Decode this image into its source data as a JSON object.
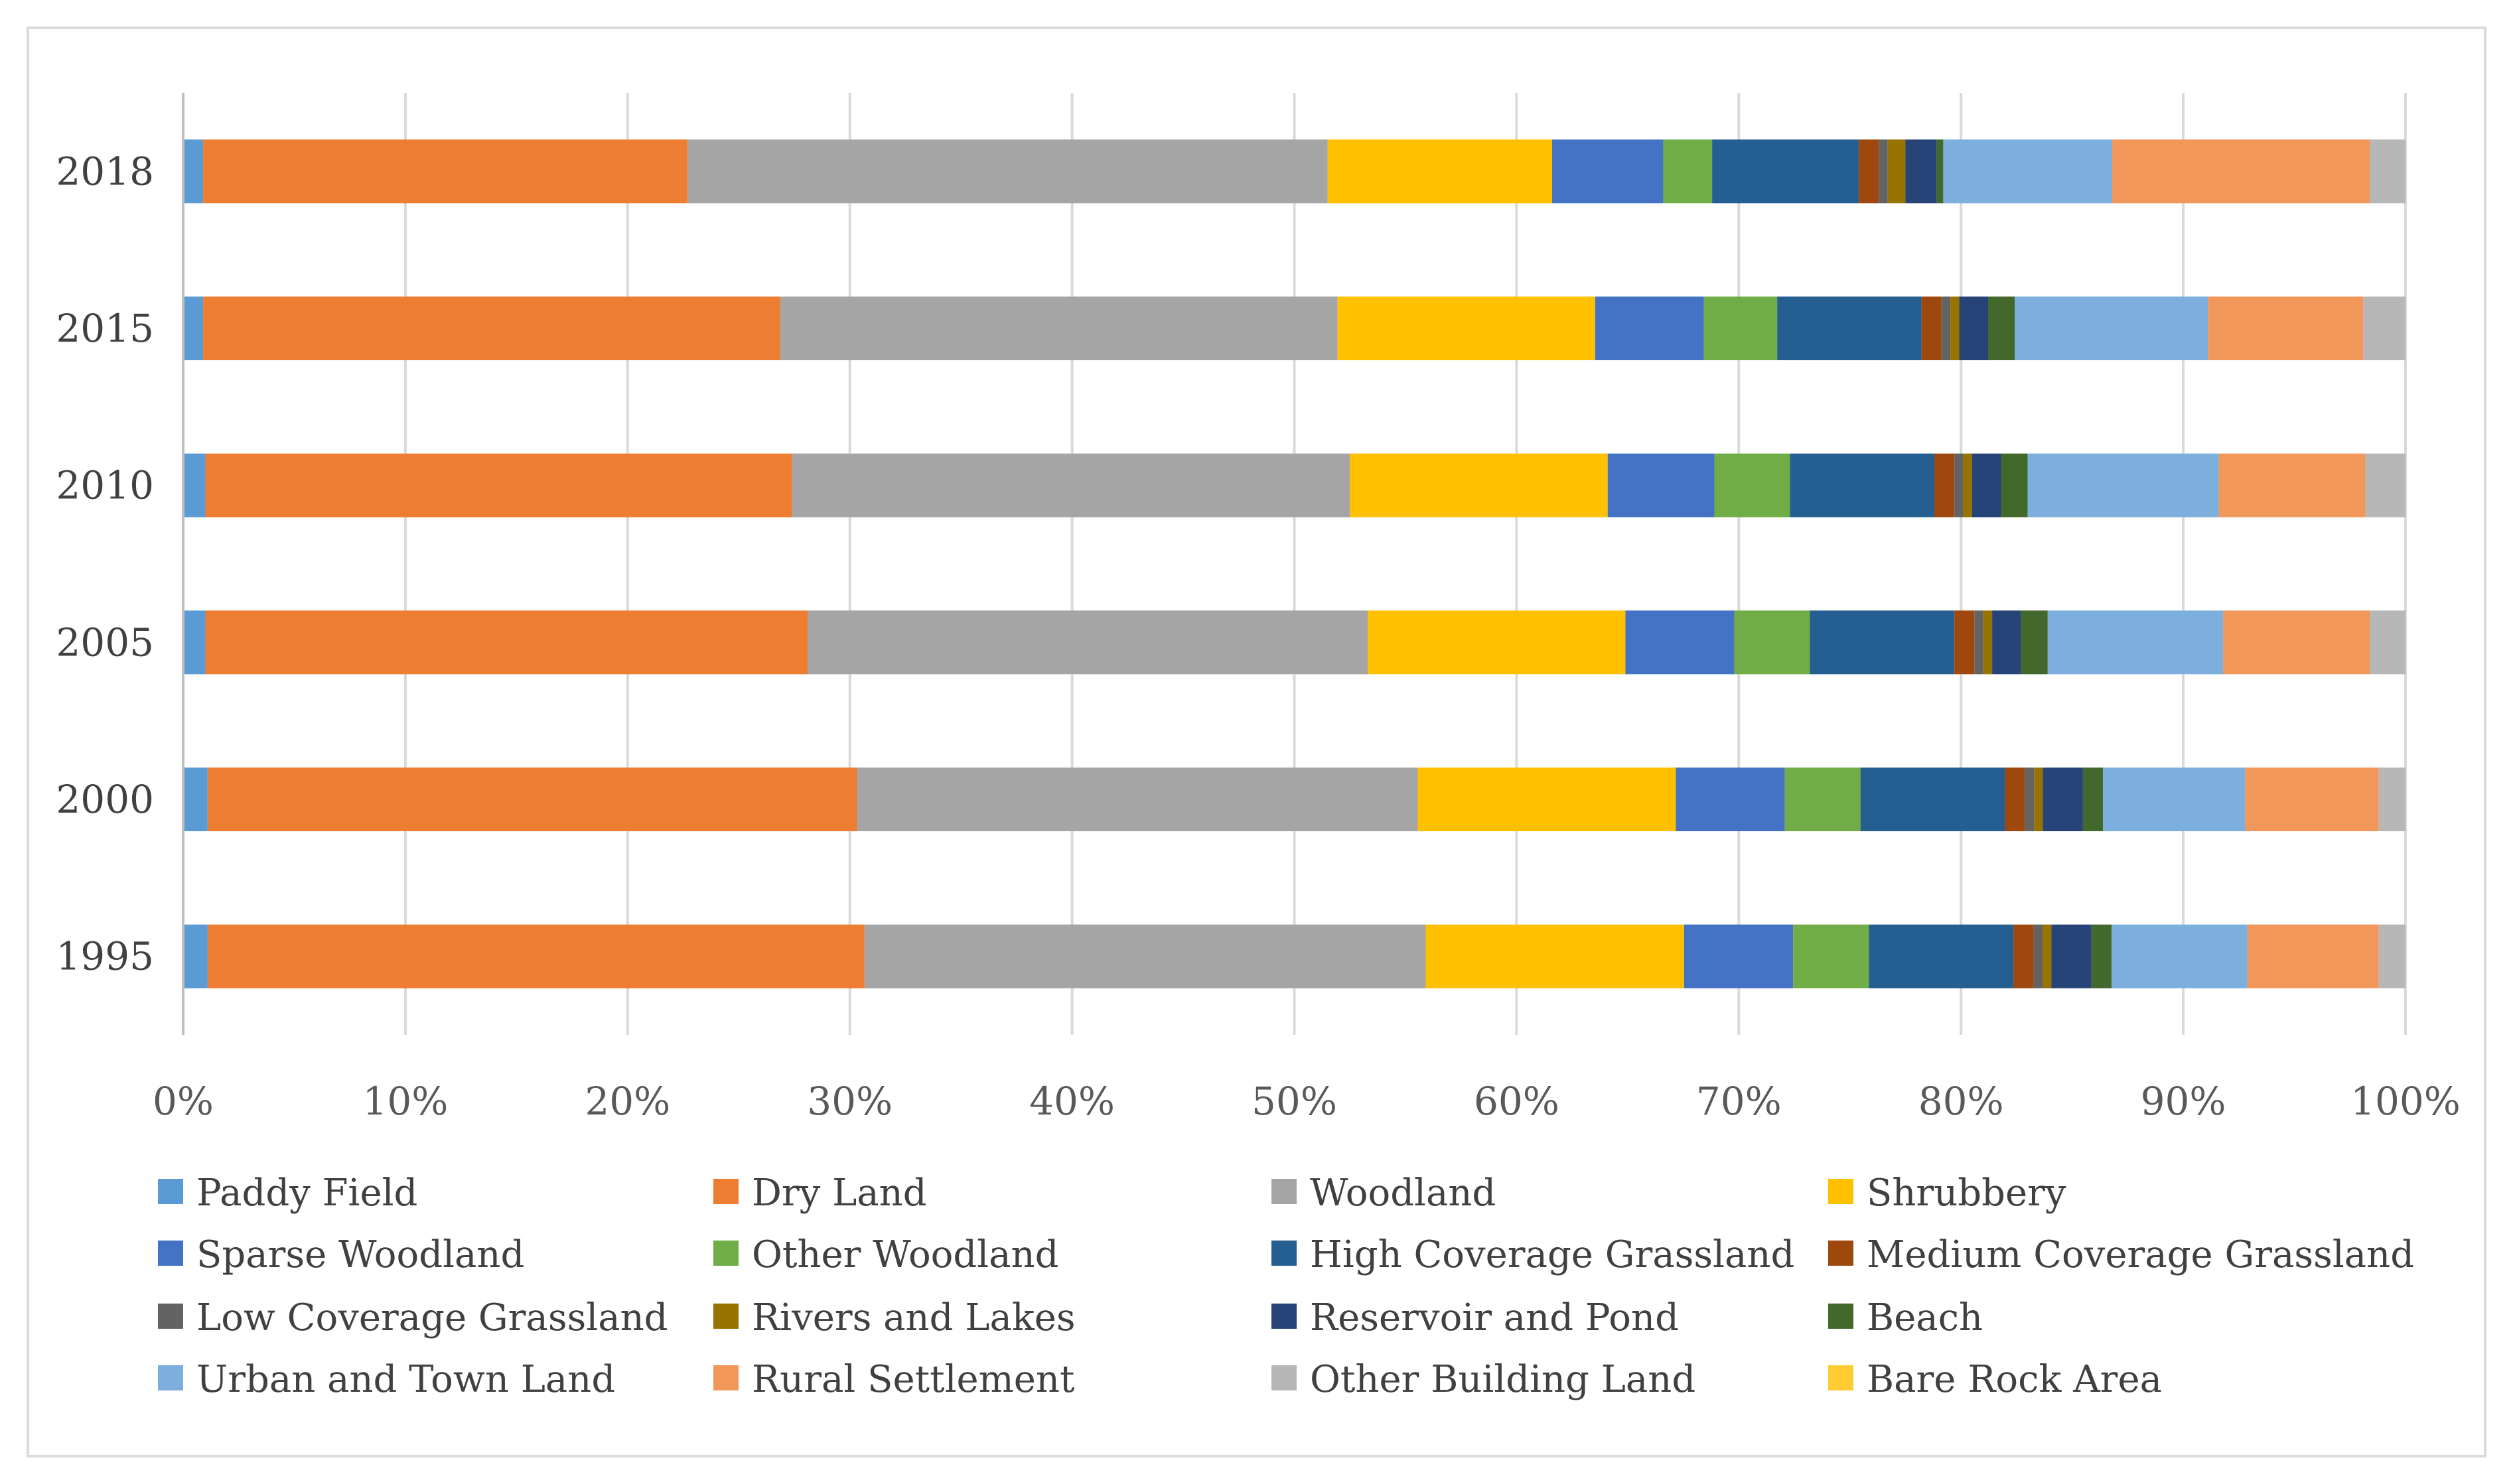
{
  "chart_data": {
    "type": "bar",
    "orientation": "horizontal",
    "stacked": "percent",
    "title": "",
    "xlabel": "",
    "ylabel": "",
    "xlim": [
      0,
      100
    ],
    "x_ticks": [
      "0%",
      "10%",
      "20%",
      "30%",
      "40%",
      "50%",
      "60%",
      "70%",
      "80%",
      "90%",
      "100%"
    ],
    "grid": "vertical",
    "legend_position": "bottom",
    "categories": [
      "1995",
      "2000",
      "2005",
      "2010",
      "2015",
      "2018"
    ],
    "series": [
      {
        "name": "Paddy Field",
        "color": "#5B9BD5",
        "values": [
          1.1,
          1.1,
          1.0,
          1.0,
          0.9,
          0.9
        ]
      },
      {
        "name": "Dry Land",
        "color": "#ED7D31",
        "values": [
          29.5,
          29.2,
          27.1,
          26.4,
          26.0,
          21.8
        ]
      },
      {
        "name": "Woodland",
        "color": "#A5A5A5",
        "values": [
          25.2,
          25.2,
          25.2,
          25.1,
          25.1,
          28.8
        ]
      },
      {
        "name": "Shrubbery",
        "color": "#FFC000",
        "values": [
          11.6,
          11.6,
          11.6,
          11.6,
          11.6,
          10.1
        ]
      },
      {
        "name": "Sparse Woodland",
        "color": "#4472C4",
        "values": [
          4.9,
          4.9,
          4.9,
          4.8,
          4.9,
          5.0
        ]
      },
      {
        "name": "Other Woodland",
        "color": "#70AD47",
        "values": [
          3.4,
          3.4,
          3.4,
          3.4,
          3.3,
          2.2
        ]
      },
      {
        "name": "High Coverage Grassland",
        "color": "#255E91",
        "values": [
          6.5,
          6.5,
          6.5,
          6.5,
          6.5,
          6.6
        ]
      },
      {
        "name": "Medium Coverage Grassland",
        "color": "#9E480E",
        "values": [
          0.9,
          0.9,
          0.9,
          0.9,
          0.9,
          0.9
        ]
      },
      {
        "name": "Low Coverage Grassland",
        "color": "#636363",
        "values": [
          0.4,
          0.4,
          0.4,
          0.4,
          0.4,
          0.4
        ]
      },
      {
        "name": "Rivers and Lakes",
        "color": "#997300",
        "values": [
          0.4,
          0.4,
          0.4,
          0.4,
          0.4,
          0.8
        ]
      },
      {
        "name": "Reservoir and Pond",
        "color": "#264478",
        "values": [
          1.8,
          1.8,
          1.3,
          1.3,
          1.3,
          1.4
        ]
      },
      {
        "name": "Beach",
        "color": "#43682B",
        "values": [
          0.9,
          0.9,
          1.2,
          1.2,
          1.2,
          0.3
        ]
      },
      {
        "name": "Urban and Town Land",
        "color": "#7CAFDD",
        "values": [
          6.1,
          6.4,
          7.9,
          8.6,
          8.7,
          7.6
        ]
      },
      {
        "name": "Rural Settlement",
        "color": "#F1975A",
        "values": [
          5.9,
          6.0,
          6.6,
          6.6,
          7.0,
          11.6
        ]
      },
      {
        "name": "Other Building Land",
        "color": "#B7B7B7",
        "values": [
          1.2,
          1.2,
          1.6,
          1.8,
          1.9,
          1.6
        ]
      },
      {
        "name": "Bare Rock Area",
        "color": "#FFCD33",
        "values": [
          0,
          0,
          0,
          0,
          0,
          0
        ]
      }
    ]
  }
}
